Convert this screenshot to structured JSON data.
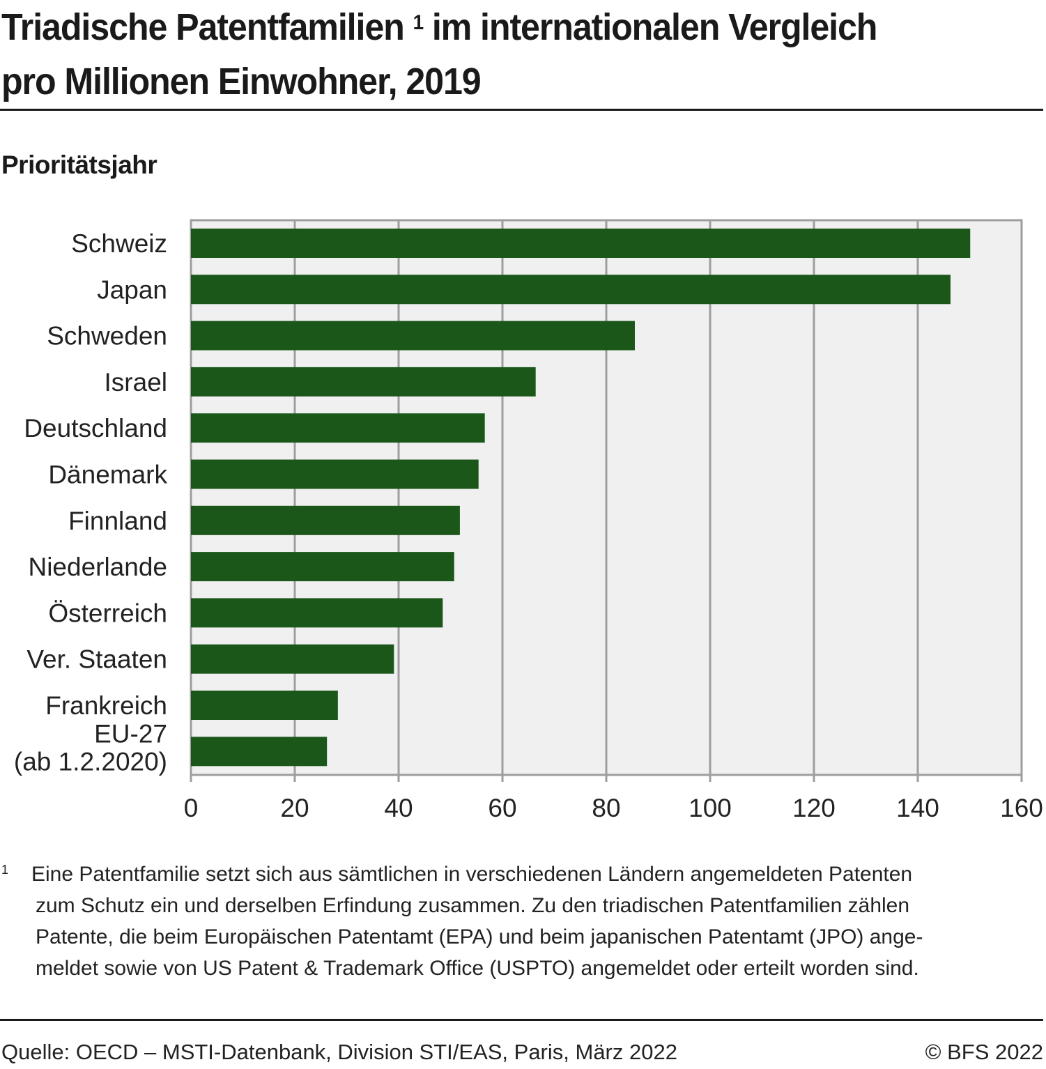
{
  "header": {
    "title_part1": "Triadische Patentfamilien",
    "title_footnote_ref": "1",
    "title_part2": " im internationalen Vergleich",
    "title_line2": "pro Millionen Einwohner, 2019",
    "subtitle": "Prioritätsjahr"
  },
  "chart_data": {
    "type": "bar",
    "orientation": "horizontal",
    "title": "Triadische Patentfamilien im internationalen Vergleich pro Millionen Einwohner, 2019",
    "subtitle": "Prioritätsjahr",
    "xlabel": "",
    "ylabel": "",
    "categories": [
      "Schweiz",
      "Japan",
      "Schweden",
      "Israel",
      "Deutschland",
      "Dänemark",
      "Finnland",
      "Niederlande",
      "Österreich",
      "Ver. Staaten",
      "Frankreich",
      "EU-27\n(ab 1.2.2020)"
    ],
    "values": [
      150.1,
      146.3,
      85.5,
      66.4,
      56.6,
      55.4,
      51.8,
      50.7,
      48.5,
      39.1,
      28.3,
      26.2
    ],
    "xlim": [
      0,
      160
    ],
    "xticks": [
      0,
      20,
      40,
      60,
      80,
      100,
      120,
      140,
      160
    ],
    "xtick_labels": [
      "0",
      "20",
      "40",
      "60",
      "80",
      "100",
      "120",
      "140",
      "160"
    ],
    "grid": true,
    "legend": "none",
    "colors": {
      "bar": "#1a5719",
      "plot_background": "#f0f0f0",
      "grid": "#9e9e9e"
    }
  },
  "footnote": {
    "marker": "1",
    "lines": [
      "Eine Patentfamilie setzt sich aus sämtlichen in verschiedenen Ländern angemeldeten Patenten",
      "zum Schutz ein und derselben Erfindung zusammen. Zu den triadischen Patentfamilien zählen",
      "Patente, die beim Europäischen Patentamt (EPA) und beim japanischen Patentamt (JPO) ange-",
      "meldet sowie von US Patent & Trademark Office (USPTO) angemeldet oder erteilt worden sind."
    ]
  },
  "footer": {
    "source": "Quelle: OECD – MSTI-Datenbank, Division STI/EAS, Paris, März 2022",
    "copyright": "© BFS 2022"
  }
}
